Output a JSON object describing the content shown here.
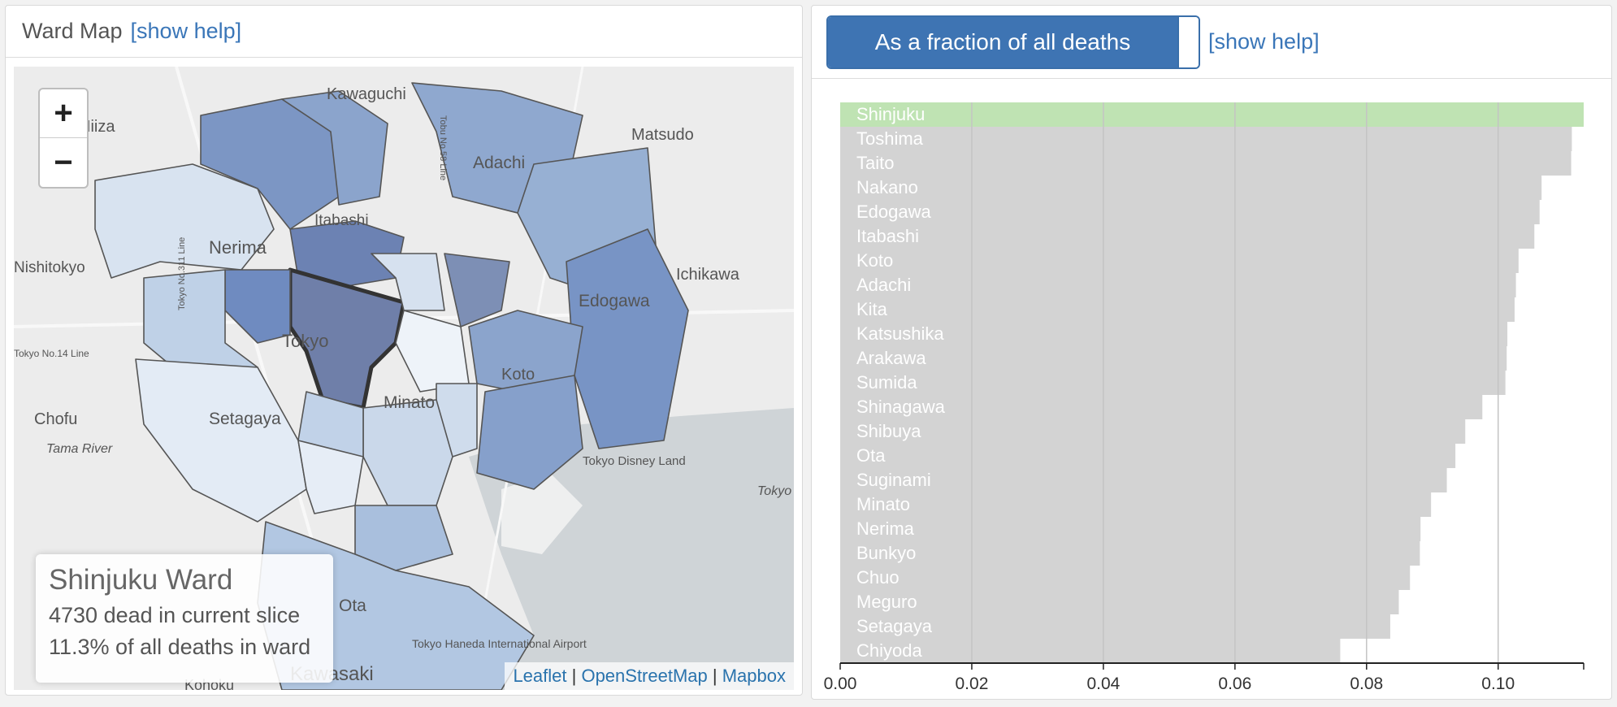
{
  "map_panel": {
    "title": "Ward Map",
    "help_link": "[show help]",
    "zoom_in": "+",
    "zoom_out": "−",
    "place_labels": [
      "Kawaguchi",
      "Niiza",
      "Matsudo",
      "Adachi",
      "Itabashi",
      "Nerima",
      "Nishitokyo",
      "Ichikawa",
      "Edogawa",
      "Tokyo",
      "Koto",
      "Minato",
      "Chofu",
      "Setagaya",
      "Tama River",
      "Tokyo Disney Land",
      "Tokyo",
      "Ota",
      "Kawasaki",
      "Kohoku",
      "Tokyo Haneda International Airport",
      "Tobu No.58 Line",
      "Tokyo No.311 Line",
      "Tokyo No.14 Line"
    ],
    "info_box": {
      "title": "Shinjuku Ward",
      "line1": "4730 dead in current slice",
      "line2": "11.3% of all deaths in ward"
    },
    "attribution": {
      "leaflet": "Leaflet",
      "sep": " | ",
      "osm": "OpenStreetMap",
      "mapbox": "Mapbox"
    }
  },
  "chart_panel": {
    "toggle_label": "As a fraction of all deaths",
    "help_link": "[show help]"
  },
  "chart_data": {
    "type": "bar",
    "orientation": "horizontal",
    "categories": [
      "Shinjuku",
      "Toshima",
      "Taito",
      "Nakano",
      "Edogawa",
      "Itabashi",
      "Koto",
      "Adachi",
      "Kita",
      "Katsushika",
      "Arakawa",
      "Sumida",
      "Shinagawa",
      "Shibuya",
      "Ota",
      "Suginami",
      "Minato",
      "Nerima",
      "Bunkyo",
      "Chuo",
      "Meguro",
      "Setagaya",
      "Chiyoda"
    ],
    "values": [
      0.113,
      0.1112,
      0.1111,
      0.1066,
      0.1063,
      0.1055,
      0.1031,
      0.1027,
      0.1025,
      0.1014,
      0.1013,
      0.1011,
      0.0976,
      0.095,
      0.0935,
      0.0922,
      0.0898,
      0.0882,
      0.0881,
      0.0866,
      0.0849,
      0.0836,
      0.076
    ],
    "highlight": "Shinjuku",
    "xlim": [
      0,
      0.113
    ],
    "xticks": [
      "0.00",
      "0.02",
      "0.04",
      "0.06",
      "0.08",
      "0.10"
    ],
    "xtick_values": [
      0,
      0.02,
      0.04,
      0.06,
      0.08,
      0.1
    ],
    "grid": true,
    "colors": {
      "bar": "#d3d3d3",
      "highlight": "#bfe3b3"
    }
  }
}
